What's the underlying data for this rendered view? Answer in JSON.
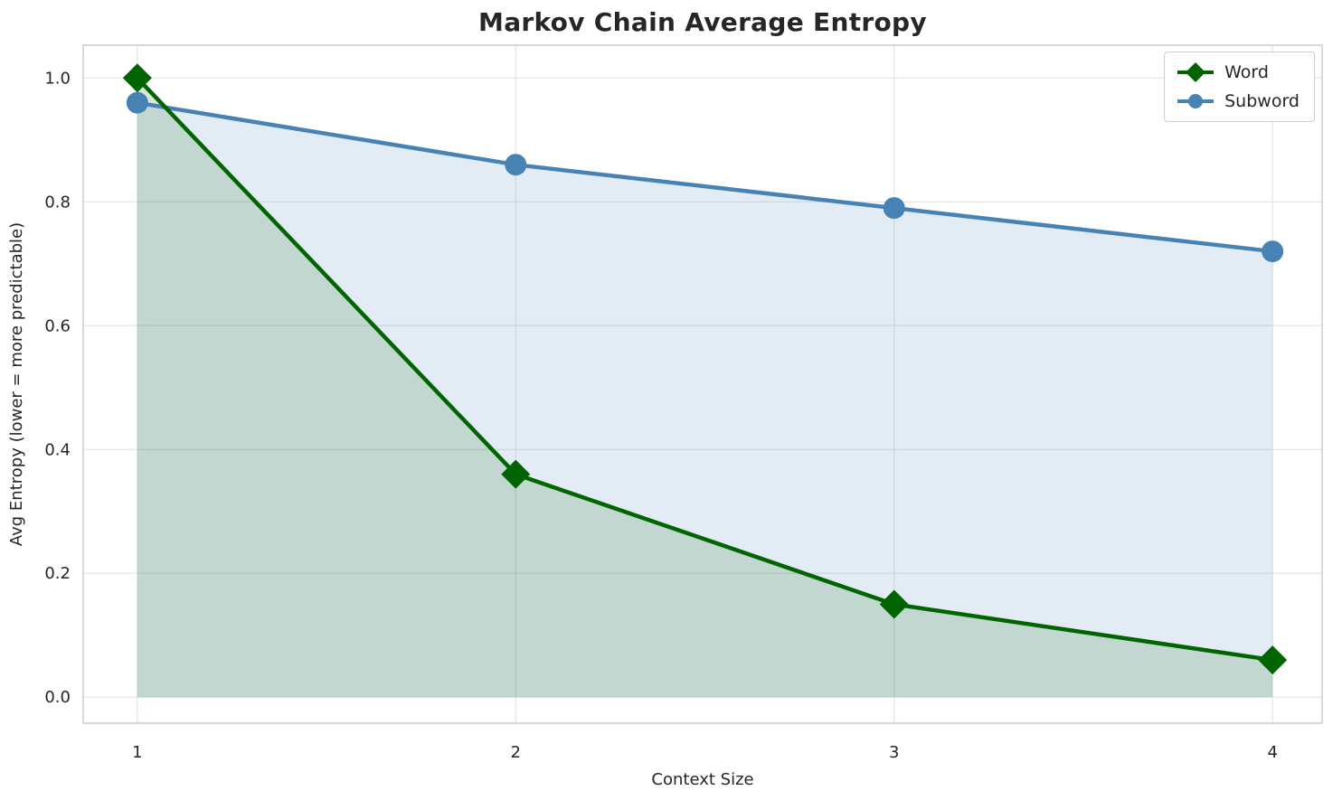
{
  "chart_data": {
    "type": "line",
    "title": "Markov Chain Average Entropy",
    "xlabel": "Context Size",
    "ylabel": "Avg Entropy (lower = more predictable)",
    "categories": [
      1,
      2,
      3,
      4
    ],
    "series": [
      {
        "name": "Word",
        "values": [
          1.0,
          0.36,
          0.15,
          0.06
        ],
        "color": "#006400",
        "marker": "diamond",
        "fill_opacity": 0.15
      },
      {
        "name": "Subword",
        "values": [
          0.96,
          0.86,
          0.79,
          0.72
        ],
        "color": "#4682b4",
        "marker": "circle",
        "fill_opacity": 0.15
      }
    ],
    "xlim": [
      0.857,
      4.131
    ],
    "ylim": [
      -0.042,
      1.053
    ],
    "yticks": [
      0.0,
      0.2,
      0.4,
      0.6,
      0.8,
      1.0
    ],
    "grid": true,
    "fill_to_zero": true,
    "legend_position": "upper right"
  },
  "colors": {
    "grid": "#e4e4e4",
    "spine": "#cccccc",
    "text": "#262626",
    "background": "#ffffff"
  }
}
